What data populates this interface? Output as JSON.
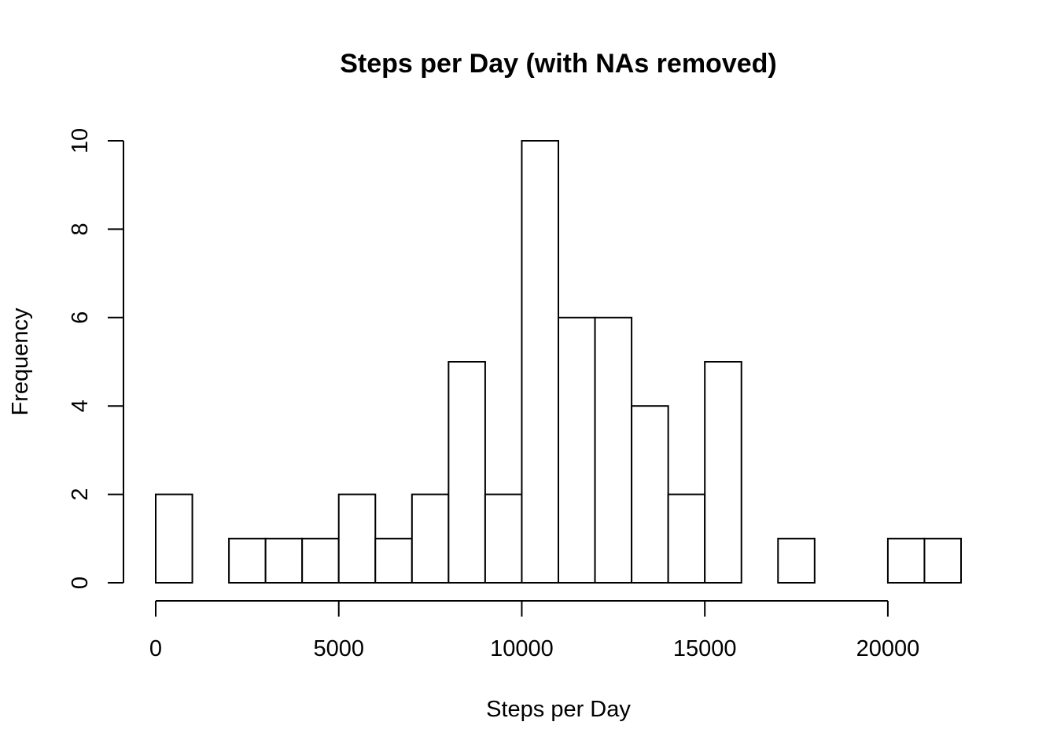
{
  "chart_data": {
    "type": "bar",
    "title": "Steps per Day (with NAs removed)",
    "xlabel": "Steps per Day",
    "ylabel": "Frequency",
    "bin_width": 1000,
    "bins": [
      {
        "from": 0,
        "to": 1000,
        "count": 2
      },
      {
        "from": 1000,
        "to": 2000,
        "count": 0
      },
      {
        "from": 2000,
        "to": 3000,
        "count": 1
      },
      {
        "from": 3000,
        "to": 4000,
        "count": 1
      },
      {
        "from": 4000,
        "to": 5000,
        "count": 1
      },
      {
        "from": 5000,
        "to": 6000,
        "count": 2
      },
      {
        "from": 6000,
        "to": 7000,
        "count": 1
      },
      {
        "from": 7000,
        "to": 8000,
        "count": 2
      },
      {
        "from": 8000,
        "to": 9000,
        "count": 5
      },
      {
        "from": 9000,
        "to": 10000,
        "count": 2
      },
      {
        "from": 10000,
        "to": 11000,
        "count": 10
      },
      {
        "from": 11000,
        "to": 12000,
        "count": 6
      },
      {
        "from": 12000,
        "to": 13000,
        "count": 6
      },
      {
        "from": 13000,
        "to": 14000,
        "count": 4
      },
      {
        "from": 14000,
        "to": 15000,
        "count": 2
      },
      {
        "from": 15000,
        "to": 16000,
        "count": 5
      },
      {
        "from": 16000,
        "to": 17000,
        "count": 0
      },
      {
        "from": 17000,
        "to": 18000,
        "count": 1
      },
      {
        "from": 18000,
        "to": 19000,
        "count": 0
      },
      {
        "from": 19000,
        "to": 20000,
        "count": 0
      },
      {
        "from": 20000,
        "to": 21000,
        "count": 1
      },
      {
        "from": 21000,
        "to": 22000,
        "count": 1
      }
    ],
    "x_ticks": [
      0,
      5000,
      10000,
      15000,
      20000
    ],
    "y_ticks": [
      0,
      2,
      4,
      6,
      8,
      10
    ],
    "xlim": [
      0,
      22000
    ],
    "ylim": [
      0,
      10
    ],
    "grid": false,
    "legend": "none"
  }
}
